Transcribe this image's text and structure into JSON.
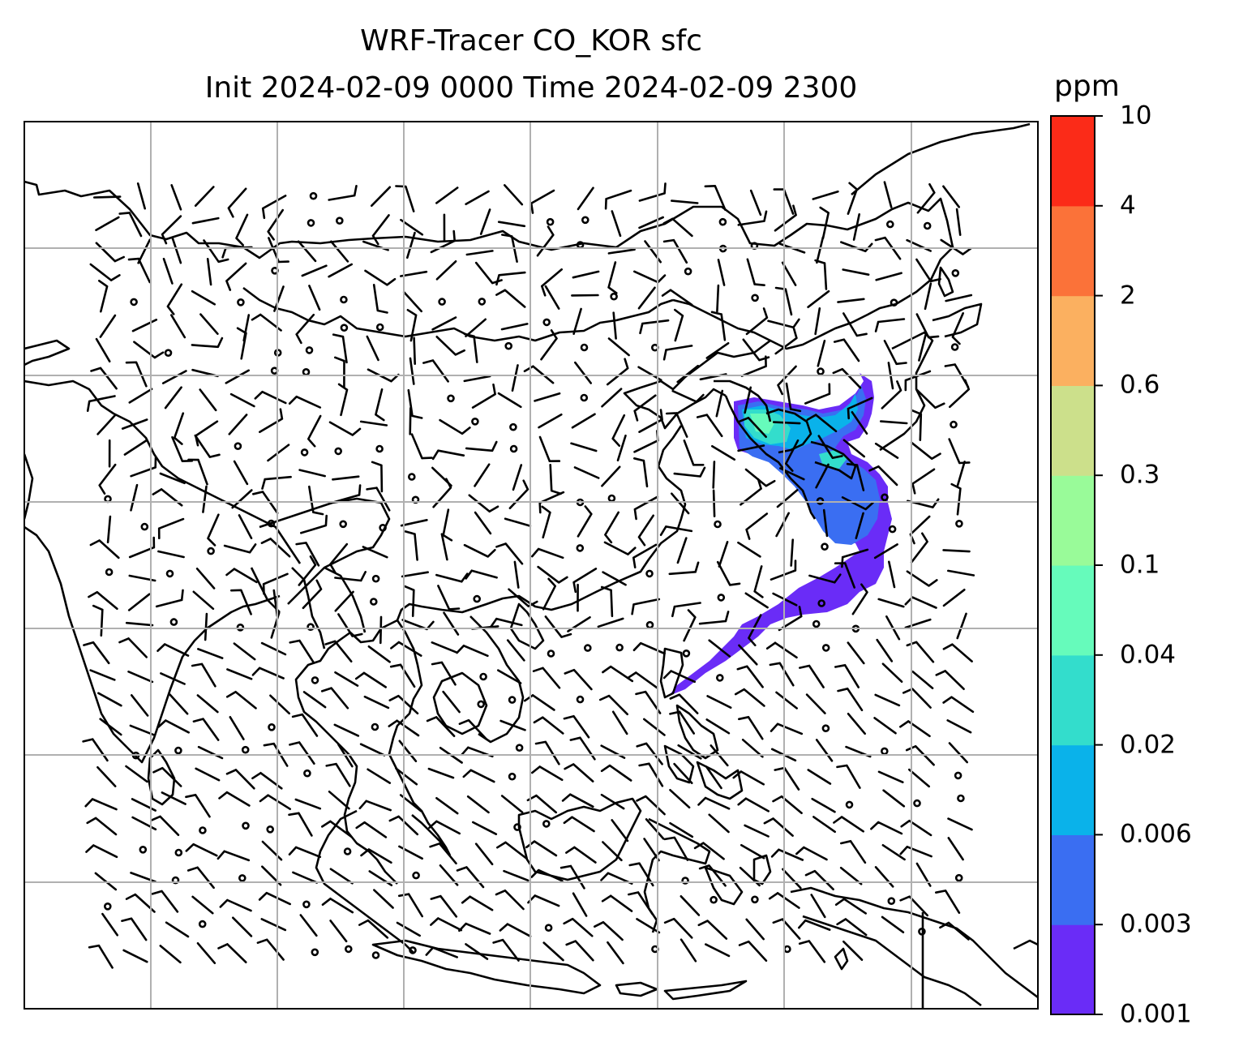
{
  "title_line1": "WRF-Tracer CO_KOR sfc",
  "title_line2": "Init 2024-02-09 0000 Time 2024-02-09 2300",
  "colorbar": {
    "unit": "ppm",
    "levels": [
      "0.001",
      "0.003",
      "0.006",
      "0.02",
      "0.04",
      "0.1",
      "0.3",
      "0.6",
      "2",
      "4",
      "10"
    ],
    "colors": [
      "#6a2cf7",
      "#3a6ef2",
      "#0ab2ea",
      "#33ddcc",
      "#66fbbb",
      "#99fb99",
      "#cce08b",
      "#fbb060",
      "#fb7239",
      "#fb2b18"
    ]
  },
  "map": {
    "gridlines": true,
    "coastline_color": "#000000",
    "plume_colors": [
      "#6a2cf7",
      "#3a6ef2",
      "#0ab2ea",
      "#33ddcc",
      "#66fbbb"
    ]
  }
}
